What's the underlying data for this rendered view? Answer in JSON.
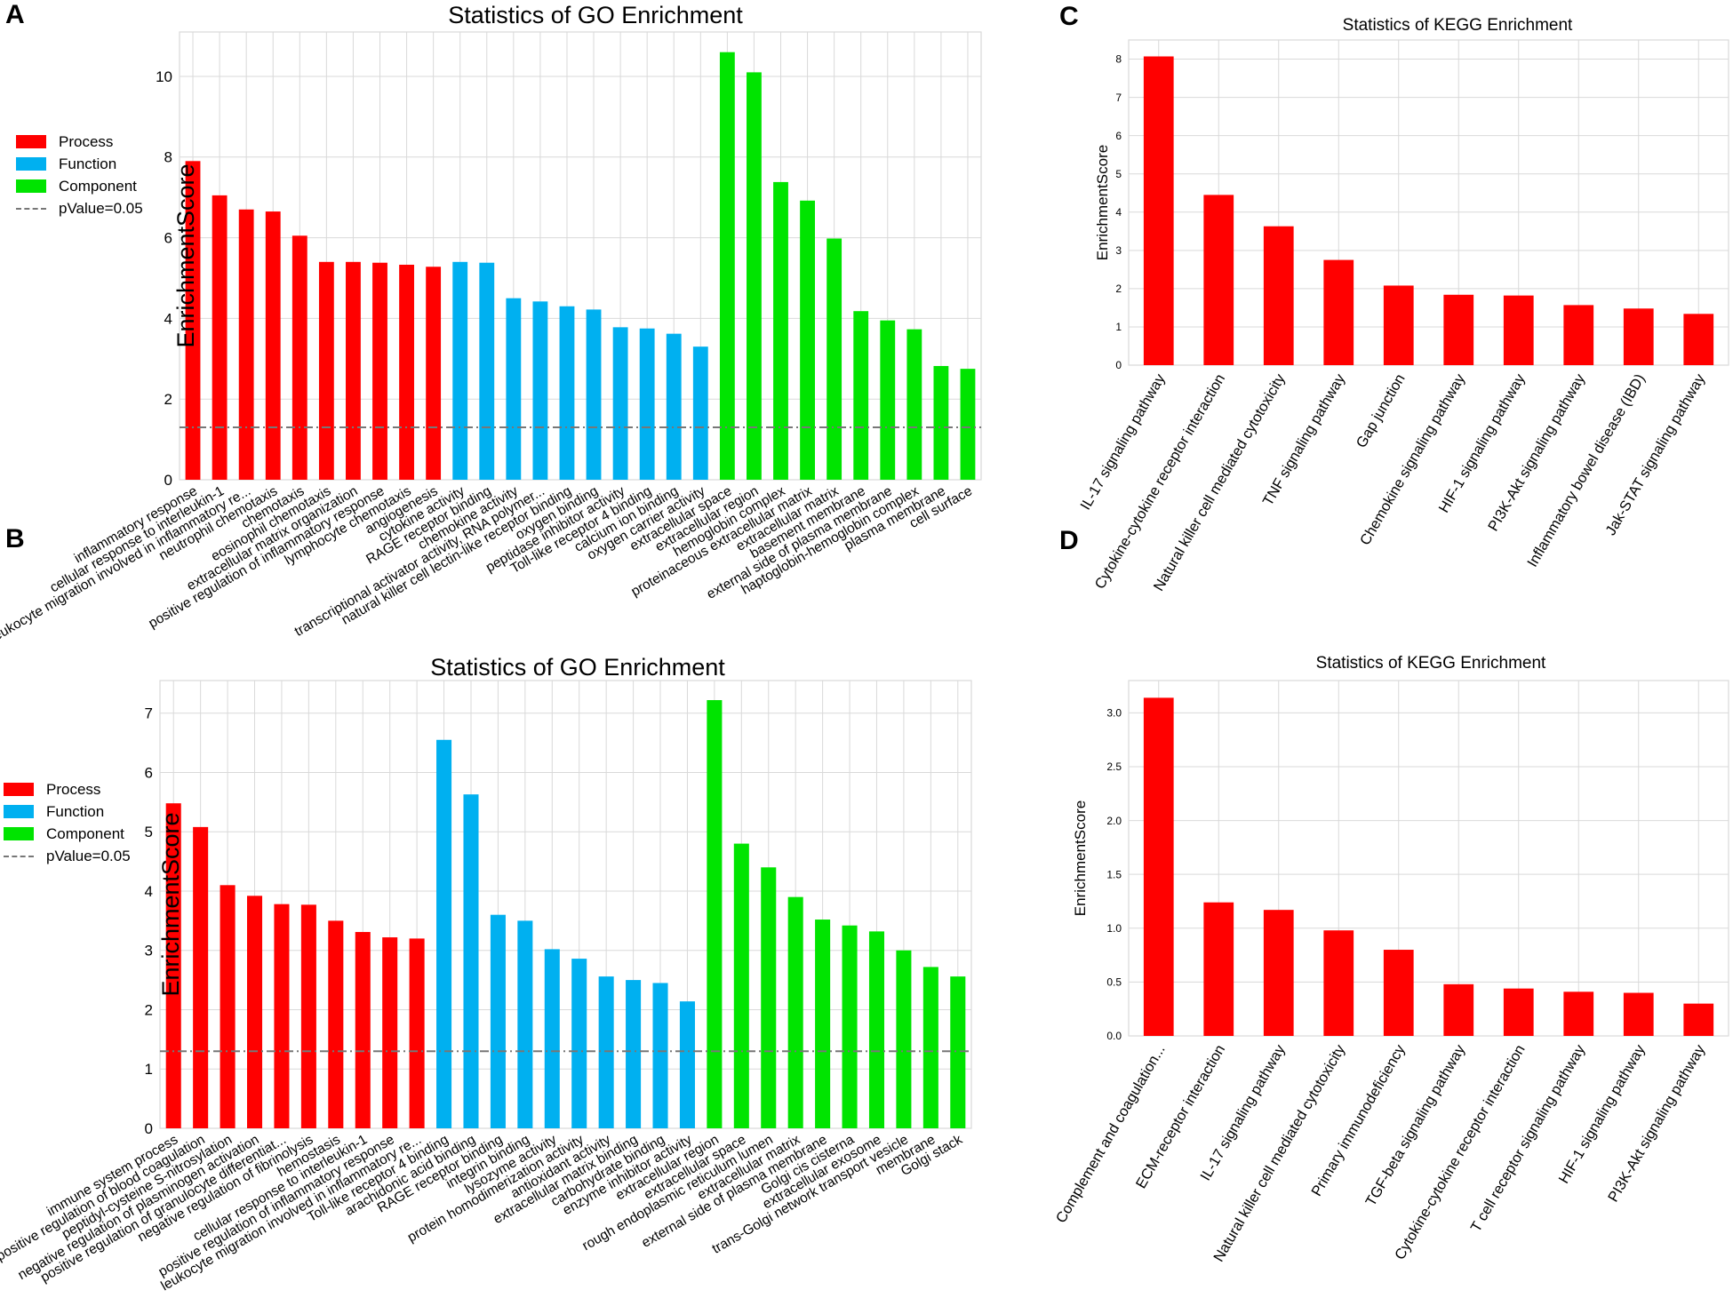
{
  "panels": {
    "a": "A",
    "b": "B",
    "c": "C",
    "d": "D"
  },
  "legend_labels": {
    "process": "Process",
    "function": "Function",
    "component": "Component",
    "pvalue": "pValue=0.05"
  },
  "colors": {
    "process": "#ff0000",
    "function": "#00b0f0",
    "component": "#00e400",
    "pvalue_line": "#777777",
    "grid": "#d9d9d9"
  },
  "chart_data": [
    {
      "id": "A",
      "type": "bar",
      "title": "Statistics of GO Enrichment",
      "ylabel": "EnrichmentScore",
      "ylim": [
        0,
        11.1
      ],
      "yticks": [
        0,
        2,
        4,
        6,
        8,
        10
      ],
      "ytick_labels": [
        "0",
        "2",
        "4",
        "6",
        "8",
        "10"
      ],
      "pvalue_threshold": 1.3,
      "legend": "left",
      "categories": [
        "inflammatory response",
        "cellular response to interleukin-1",
        "leukocyte migration involved in inflammatory re...",
        "neutrophil chemotaxis",
        "chemotaxis",
        "eosinophil chemotaxis",
        "extracellular matrix organization",
        "positive regulation of inflammatory response",
        "lymphocyte chemotaxis",
        "angiogenesis",
        "cytokine activity",
        "RAGE receptor binding",
        "chemokine activity",
        "transcriptional activator activity, RNA polymer...",
        "natural killer cell lectin-like receptor binding",
        "oxygen binding",
        "peptidase inhibitor activity",
        "Toll-like receptor 4 binding",
        "calcium ion binding",
        "oxygen carrier activity",
        "extracellular space",
        "extracellular region",
        "hemoglobin complex",
        "proteinaceous extracellular matrix",
        "extracellular matrix",
        "basement membrane",
        "external side of plasma membrane",
        "haptoglobin-hemoglobin complex",
        "plasma membrane",
        "cell surface"
      ],
      "values": [
        7.9,
        7.05,
        6.7,
        6.65,
        6.05,
        5.4,
        5.4,
        5.38,
        5.33,
        5.28,
        5.4,
        5.38,
        4.5,
        4.42,
        4.3,
        4.22,
        3.78,
        3.75,
        3.62,
        3.3,
        10.6,
        10.1,
        7.38,
        6.92,
        5.98,
        4.18,
        3.95,
        3.73,
        2.82,
        2.75
      ],
      "groups": [
        "process",
        "process",
        "process",
        "process",
        "process",
        "process",
        "process",
        "process",
        "process",
        "process",
        "function",
        "function",
        "function",
        "function",
        "function",
        "function",
        "function",
        "function",
        "function",
        "function",
        "component",
        "component",
        "component",
        "component",
        "component",
        "component",
        "component",
        "component",
        "component",
        "component"
      ]
    },
    {
      "id": "B",
      "type": "bar",
      "title": "Statistics of GO Enrichment",
      "ylabel": "EnrichmentScore",
      "ylim": [
        0,
        7.55
      ],
      "yticks": [
        0,
        1,
        2,
        3,
        4,
        5,
        6,
        7
      ],
      "ytick_labels": [
        "0",
        "1",
        "2",
        "3",
        "4",
        "5",
        "6",
        "7"
      ],
      "pvalue_threshold": 1.3,
      "legend": "left",
      "categories": [
        "immune system process",
        "positive regulation of blood coagulation",
        "peptidyl-cysteine S-nitrosylation",
        "negative regulation of plasminogen activation",
        "positive regulation of granulocyte differentiat...",
        "negative regulation of fibrinolysis",
        "hemostasis",
        "cellular response to interleukin-1",
        "positive regulation of inflammatory response",
        "leukocyte migration involved in inflammatory re...",
        "Toll-like receptor 4 binding",
        "arachidonic acid binding",
        "RAGE receptor binding",
        "integrin binding",
        "lysozyme activity",
        "protein homodimerization activity",
        "antioxidant activity",
        "extracellular matrix binding",
        "carbohydrate binding",
        "enzyme inhibitor activity",
        "extracellular region",
        "extracellular space",
        "rough endoplasmic reticulum lumen",
        "extracellular matrix",
        "external side of plasma membrane",
        "Golgi cis cisterna",
        "extracellular exosome",
        "trans-Golgi network transport vesicle",
        "membrane",
        "Golgi stack"
      ],
      "values": [
        5.48,
        5.08,
        4.1,
        3.92,
        3.78,
        3.77,
        3.5,
        3.31,
        3.22,
        3.2,
        6.55,
        5.63,
        3.6,
        3.5,
        3.02,
        2.86,
        2.56,
        2.5,
        2.45,
        2.14,
        7.22,
        4.8,
        4.4,
        3.9,
        3.52,
        3.42,
        3.32,
        3.0,
        2.72,
        2.56
      ],
      "groups": [
        "process",
        "process",
        "process",
        "process",
        "process",
        "process",
        "process",
        "process",
        "process",
        "process",
        "function",
        "function",
        "function",
        "function",
        "function",
        "function",
        "function",
        "function",
        "function",
        "function",
        "component",
        "component",
        "component",
        "component",
        "component",
        "component",
        "component",
        "component",
        "component",
        "component"
      ]
    },
    {
      "id": "C",
      "type": "bar",
      "title": "Statistics of KEGG Enrichment",
      "ylabel": "EnrichmentScore",
      "ylim": [
        0,
        8.5
      ],
      "yticks": [
        0,
        1,
        2,
        3,
        4,
        5,
        6,
        7,
        8
      ],
      "ytick_labels": [
        "0",
        "1",
        "2",
        "3",
        "4",
        "5",
        "6",
        "7",
        "8"
      ],
      "categories": [
        "IL-17 signaling pathway",
        "Cytokine-cytokine receptor interaction",
        "Natural killer cell mediated cytotoxicity",
        "TNF signaling pathway",
        "Gap junction",
        "Chemokine signaling pathway",
        "HIF-1 signaling pathway",
        "PI3K-Akt signaling pathway",
        "Inflammatory bowel disease (IBD)",
        "Jak-STAT signaling pathway"
      ],
      "values": [
        8.07,
        4.45,
        3.63,
        2.75,
        2.08,
        1.84,
        1.82,
        1.57,
        1.48,
        1.34
      ],
      "groups": [
        "process",
        "process",
        "process",
        "process",
        "process",
        "process",
        "process",
        "process",
        "process",
        "process"
      ]
    },
    {
      "id": "D",
      "type": "bar",
      "title": "Statistics of KEGG Enrichment",
      "ylabel": "EnrichmentScore",
      "ylim": [
        0,
        3.3
      ],
      "yticks": [
        0,
        0.5,
        1.0,
        1.5,
        2.0,
        2.5,
        3.0
      ],
      "ytick_labels": [
        "0.0",
        "0.5",
        "1.0",
        "1.5",
        "2.0",
        "2.5",
        "3.0"
      ],
      "categories": [
        "Complement and coagulation...",
        "ECM-receptor interaction",
        "IL-17 signaling pathway",
        "Natural killer cell mediated cytotoxicity",
        "Primary immunodeficiency",
        "TGF-beta signaling pathway",
        "Cytokine-cytokine receptor interaction",
        "T cell receptor signaling pathway",
        "HIF-1 signaling pathway",
        "PI3K-Akt signaling pathway"
      ],
      "values": [
        3.14,
        1.24,
        1.17,
        0.98,
        0.8,
        0.48,
        0.44,
        0.41,
        0.4,
        0.3
      ],
      "groups": [
        "process",
        "process",
        "process",
        "process",
        "process",
        "process",
        "process",
        "process",
        "process",
        "process"
      ]
    }
  ]
}
